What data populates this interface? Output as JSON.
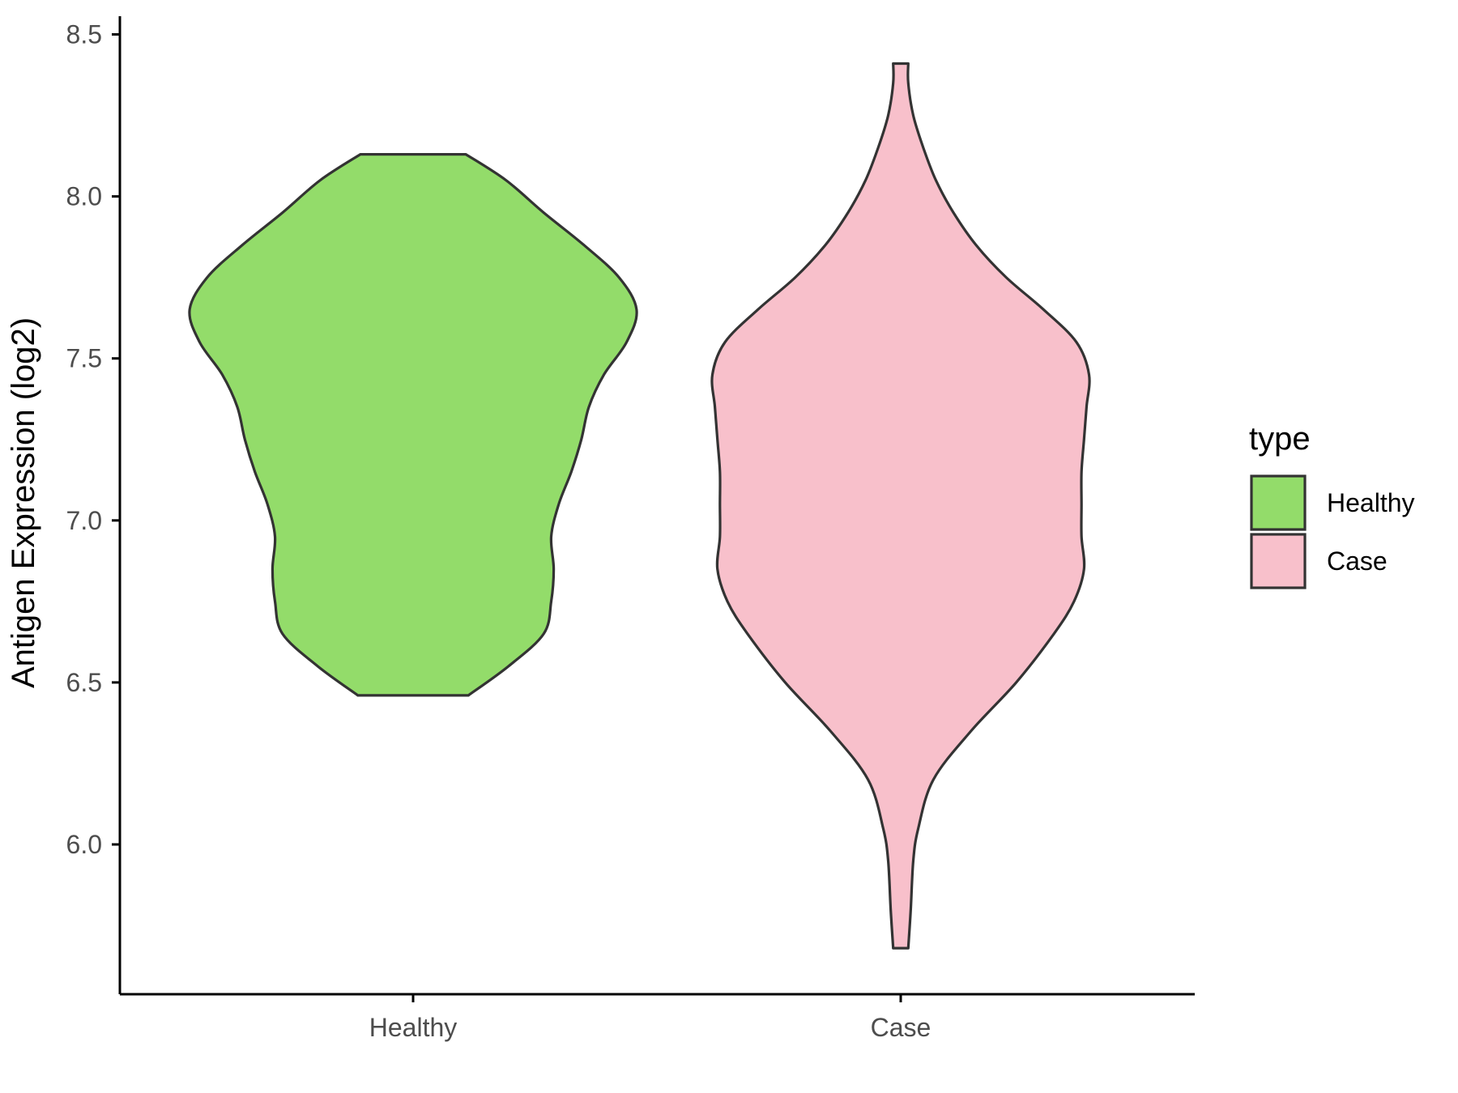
{
  "chart_data": {
    "type": "violin",
    "xlabel": "",
    "ylabel": "Antigen Expression (log2)",
    "ylim": [
      5.55,
      8.55
    ],
    "yticks": [
      6.0,
      6.5,
      7.0,
      7.5,
      8.0,
      8.5
    ],
    "ytick_labels": [
      "6.0",
      "6.5",
      "7.0",
      "7.5",
      "8.0",
      "8.5"
    ],
    "categories": [
      "Healthy",
      "Case"
    ],
    "legend": {
      "title": "type",
      "position": "right",
      "entries": [
        {
          "label": "Healthy",
          "color": "#93dc6a"
        },
        {
          "label": "Case",
          "color": "#f8c0cb"
        }
      ]
    },
    "series": [
      {
        "name": "Healthy",
        "color": "#93dc6a",
        "min": 6.46,
        "max": 8.13,
        "density_profile": [
          [
            6.46,
            0.22
          ],
          [
            6.55,
            0.38
          ],
          [
            6.65,
            0.52
          ],
          [
            6.75,
            0.55
          ],
          [
            6.85,
            0.56
          ],
          [
            6.95,
            0.55
          ],
          [
            7.05,
            0.58
          ],
          [
            7.15,
            0.63
          ],
          [
            7.25,
            0.67
          ],
          [
            7.35,
            0.7
          ],
          [
            7.45,
            0.76
          ],
          [
            7.55,
            0.85
          ],
          [
            7.65,
            0.89
          ],
          [
            7.75,
            0.82
          ],
          [
            7.85,
            0.68
          ],
          [
            7.95,
            0.52
          ],
          [
            8.05,
            0.37
          ],
          [
            8.13,
            0.21
          ]
        ]
      },
      {
        "name": "Case",
        "color": "#f8c0cb",
        "min": 5.68,
        "max": 8.41,
        "density_profile": [
          [
            5.68,
            0.03
          ],
          [
            5.8,
            0.04
          ],
          [
            5.95,
            0.05
          ],
          [
            6.05,
            0.07
          ],
          [
            6.2,
            0.13
          ],
          [
            6.35,
            0.28
          ],
          [
            6.5,
            0.46
          ],
          [
            6.65,
            0.61
          ],
          [
            6.75,
            0.69
          ],
          [
            6.85,
            0.73
          ],
          [
            6.95,
            0.72
          ],
          [
            7.05,
            0.72
          ],
          [
            7.15,
            0.72
          ],
          [
            7.25,
            0.73
          ],
          [
            7.35,
            0.74
          ],
          [
            7.45,
            0.75
          ],
          [
            7.55,
            0.7
          ],
          [
            7.65,
            0.57
          ],
          [
            7.75,
            0.42
          ],
          [
            7.85,
            0.3
          ],
          [
            7.95,
            0.21
          ],
          [
            8.05,
            0.14
          ],
          [
            8.15,
            0.09
          ],
          [
            8.25,
            0.05
          ],
          [
            8.35,
            0.03
          ],
          [
            8.41,
            0.03
          ]
        ]
      }
    ]
  }
}
